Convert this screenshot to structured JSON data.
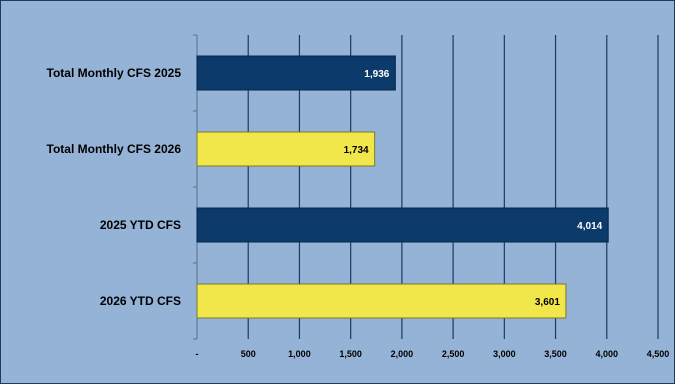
{
  "colors": {
    "background": "#95b3d7",
    "outline": "#1f3864",
    "gridline": "#1f3864",
    "series_2025": "#0b3a6b",
    "series_2026": "#f2e74a",
    "label_on_dark": "#ffffff",
    "label_on_light": "#000000"
  },
  "chart_data": {
    "type": "bar",
    "orientation": "horizontal",
    "title": "",
    "xlabel": "",
    "ylabel": "",
    "categories": [
      "Total Monthly CFS 2025",
      "Total Monthly CFS 2026",
      "2025 YTD CFS",
      "2026 YTD CFS"
    ],
    "values": [
      1936,
      1734,
      4014,
      3601
    ],
    "value_labels": [
      "1,936",
      "1,734",
      "4,014",
      "3,601"
    ],
    "bar_color_keys": [
      "series_2025",
      "series_2026",
      "series_2025",
      "series_2026"
    ],
    "xlim": [
      0,
      4500
    ],
    "xticks": [
      0,
      500,
      1000,
      1500,
      2000,
      2500,
      3000,
      3500,
      4000,
      4500
    ],
    "xtick_labels": [
      "-",
      "500",
      "1,000",
      "1,500",
      "2,000",
      "2,500",
      "3,000",
      "3,500",
      "4,000",
      "4,500"
    ],
    "grid": true,
    "legend": "none"
  }
}
